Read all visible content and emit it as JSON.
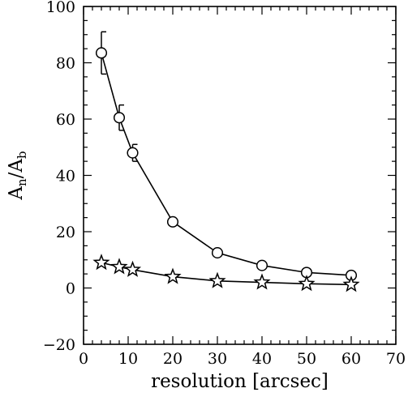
{
  "chart_data": {
    "type": "scatter",
    "xlabel": "resolution [arcsec]",
    "ylabel": {
      "main": "A",
      "sub1": "n",
      "sep": "/",
      "main2": "A",
      "sub2": "b"
    },
    "xlim": [
      0,
      70
    ],
    "ylim": [
      -20,
      100
    ],
    "xticks": [
      0,
      10,
      20,
      30,
      40,
      50,
      60,
      70
    ],
    "yticks": [
      -20,
      0,
      20,
      40,
      60,
      80,
      100
    ],
    "xtick_labels": [
      "0",
      "10",
      "20",
      "30",
      "40",
      "50",
      "60",
      "70"
    ],
    "ytick_labels": [
      "−20",
      "0",
      "20",
      "40",
      "60",
      "80",
      "100"
    ],
    "grid": false,
    "series": [
      {
        "marker": "circle",
        "x": [
          4,
          8,
          11,
          20,
          30,
          40,
          50,
          60
        ],
        "y": [
          83.5,
          60.5,
          48,
          23.5,
          12.5,
          8,
          5.5,
          4.5
        ],
        "yerr": [
          7.5,
          4.5,
          3,
          0,
          0,
          0,
          0,
          0
        ]
      },
      {
        "marker": "star",
        "x": [
          4,
          8,
          11,
          20,
          30,
          40,
          50,
          60
        ],
        "y": [
          9,
          7.5,
          6.5,
          4,
          2.5,
          2,
          1.5,
          1.2
        ],
        "yerr": [
          0,
          0,
          0,
          0,
          0,
          0,
          0,
          0
        ]
      }
    ]
  }
}
